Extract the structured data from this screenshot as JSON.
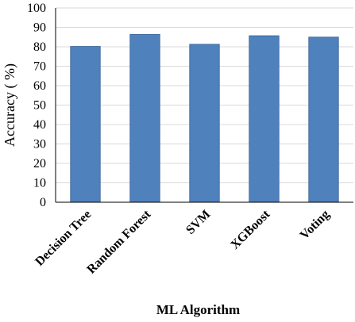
{
  "chart_data": {
    "type": "bar",
    "categories": [
      "Decision Tree",
      "Random Forest",
      "SVM",
      "XGBoost",
      "Voting"
    ],
    "values": [
      80.2,
      86.4,
      81.3,
      85.7,
      85.0
    ],
    "xlabel": "ML Algorithm",
    "ylabel": "Accuracy ( %)",
    "ylim": [
      0,
      100
    ],
    "yticks": [
      "0",
      "10",
      "20",
      "30",
      "40",
      "50",
      "60",
      "70",
      "80",
      "90",
      "100"
    ],
    "grid": true,
    "legend": "none",
    "bar_color": "#4F81BD",
    "bar_edge_color": "#3A6496"
  }
}
